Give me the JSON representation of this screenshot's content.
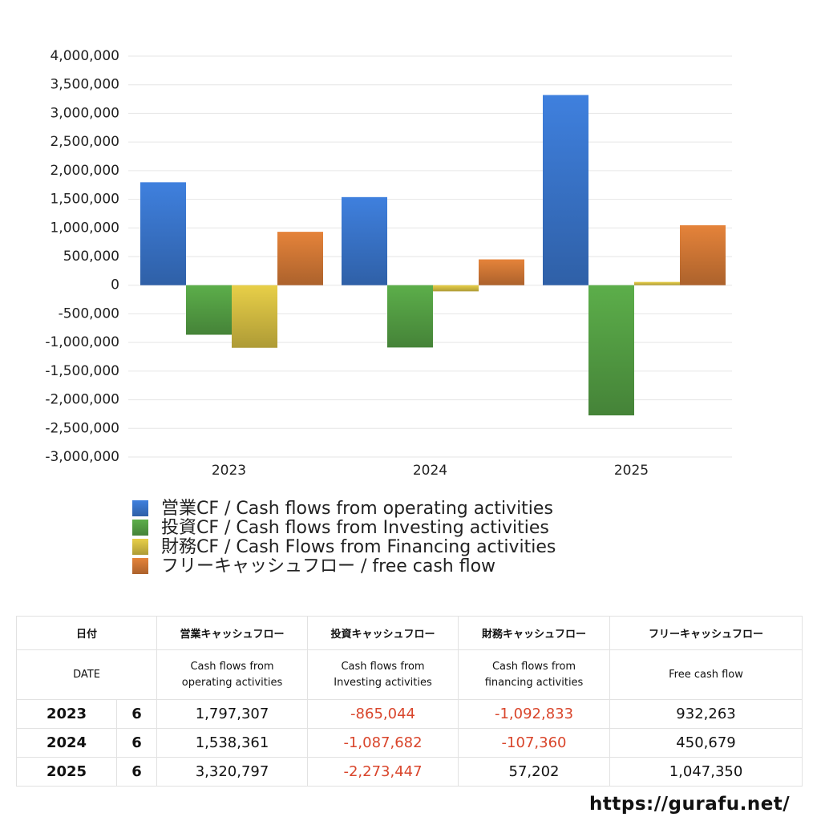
{
  "chart_data": {
    "type": "bar",
    "categories": [
      "2023",
      "2024",
      "2025"
    ],
    "series": [
      {
        "name": "営業CF / Cash flows from operating activities",
        "color": "#3f80de",
        "values": [
          1797307,
          1538361,
          3320797
        ]
      },
      {
        "name": "投資CF / Cash flows from Investing activities",
        "color": "#5cae4a",
        "values": [
          -865044,
          -1087682,
          -2273447
        ]
      },
      {
        "name": "財務CF / Cash Flows from Financing activities",
        "color": "#e8cf48",
        "values": [
          -1092833,
          -107360,
          57202
        ]
      },
      {
        "name": "フリーキャッシュフロー / free cash flow",
        "color": "#e5833a",
        "values": [
          932263,
          450679,
          1047350
        ]
      }
    ],
    "ylim": [
      -3000000,
      4000000
    ],
    "yticks": [
      {
        "value": -3000000,
        "label": "-3,000,000"
      },
      {
        "value": -2500000,
        "label": "-2,500,000"
      },
      {
        "value": -2000000,
        "label": "-2,000,000"
      },
      {
        "value": -1500000,
        "label": "-1,500,000"
      },
      {
        "value": -1000000,
        "label": "-1,000,000"
      },
      {
        "value": -500000,
        "label": "-500,000"
      },
      0,
      {
        "value": 500000,
        "label": "500,000"
      },
      {
        "value": 1000000,
        "label": "1,000,000"
      },
      {
        "value": 1500000,
        "label": "1,500,000"
      },
      {
        "value": 2000000,
        "label": "2,000,000"
      },
      {
        "value": 2500000,
        "label": "2,500,000"
      },
      {
        "value": 3000000,
        "label": "3,000,000"
      },
      {
        "value": 3500000,
        "label": "3,500,000"
      },
      {
        "value": 4000000,
        "label": "4,000,000"
      }
    ],
    "grid": true
  },
  "table": {
    "header": [
      "日付",
      "営業キャッシュフロー",
      "投資キャッシュフロー",
      "財務キャッシュフロー",
      "フリーキャッシュフロー"
    ],
    "subheader": [
      "DATE",
      "Cash flows from\noperating activities",
      "Cash flows from\nInvesting activities",
      "Cash flows from\nfinancing activities",
      "Free cash flow"
    ],
    "rows": [
      [
        "2023",
        "6",
        "1,797,307",
        "-865,044",
        "-1,092,833",
        "932,263"
      ],
      [
        "2024",
        "6",
        "1,538,361",
        "-1,087,682",
        "-107,360",
        "450,679"
      ],
      [
        "2025",
        "6",
        "3,320,797",
        "-2,273,447",
        "57,202",
        "1,047,350"
      ]
    ]
  },
  "footer": "https://gurafu.net/"
}
